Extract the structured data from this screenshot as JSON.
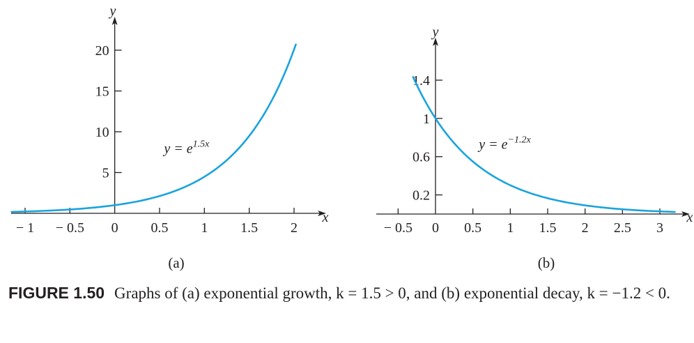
{
  "caption": {
    "label": "FIGURE 1.50",
    "text": "Graphs of (a) exponential growth, k = 1.5 > 0, and (b) exponential decay, k = −1.2 < 0."
  },
  "colors": {
    "curve": "#1aa3dd",
    "axis": "#231f20"
  },
  "chart_data": [
    {
      "type": "line",
      "panel_label": "(a)",
      "xlabel": "x",
      "ylabel": "y",
      "xlim": [
        -1.1,
        2.25
      ],
      "ylim": [
        0,
        23
      ],
      "x_ticks": [
        {
          "value": -1,
          "label": "− 1"
        },
        {
          "value": -0.5,
          "label": "− 0.5"
        },
        {
          "value": 0,
          "label": "0"
        },
        {
          "value": 0.5,
          "label": "0.5"
        },
        {
          "value": 1,
          "label": "1"
        },
        {
          "value": 1.5,
          "label": "1.5"
        },
        {
          "value": 2,
          "label": "2"
        }
      ],
      "y_ticks": [
        {
          "value": 5,
          "label": "5"
        },
        {
          "value": 10,
          "label": "10"
        },
        {
          "value": 15,
          "label": "15"
        },
        {
          "value": 20,
          "label": "20"
        }
      ],
      "series": [
        {
          "name": "y = e^{1.5x}",
          "label_main": "y = e",
          "label_exp": "1.5x",
          "label_at": [
            0.55,
            7.4
          ],
          "k": 1.5,
          "x": [
            -1.15,
            2.02
          ]
        }
      ],
      "grid": false
    },
    {
      "type": "line",
      "panel_label": "(b)",
      "xlabel": "x",
      "ylabel": "y",
      "xlim": [
        -0.55,
        3.3
      ],
      "ylim": [
        0,
        1.7
      ],
      "x_ticks": [
        {
          "value": -0.5,
          "label": "− 0.5"
        },
        {
          "value": 0,
          "label": "0"
        },
        {
          "value": 0.5,
          "label": "0.5"
        },
        {
          "value": 1,
          "label": "1"
        },
        {
          "value": 1.5,
          "label": "1.5"
        },
        {
          "value": 2,
          "label": "2"
        },
        {
          "value": 2.5,
          "label": "2.5"
        },
        {
          "value": 3,
          "label": "3"
        }
      ],
      "y_ticks": [
        {
          "value": 0.2,
          "label": "0.2"
        },
        {
          "value": 0.6,
          "label": "0.6"
        },
        {
          "value": 1,
          "label": "1"
        },
        {
          "value": 1.4,
          "label": "1.4"
        }
      ],
      "series": [
        {
          "name": "y = e^{-1.2x}",
          "label_main": "y = e",
          "label_exp": "−1.2x",
          "label_at": [
            0.58,
            0.68
          ],
          "k": -1.2,
          "x": [
            -0.3,
            3.2
          ]
        }
      ],
      "grid": false
    }
  ]
}
